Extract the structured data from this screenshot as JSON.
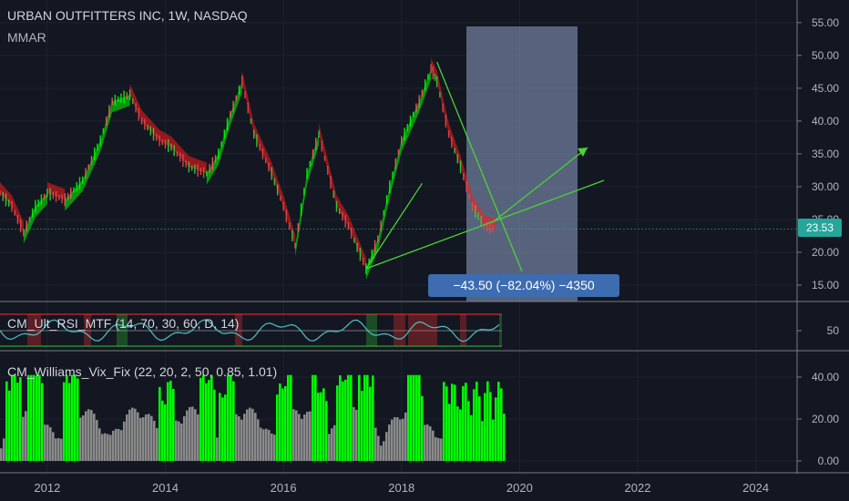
{
  "header": {
    "title": "URBAN OUTFITTERS INC, 1W, NASDAQ",
    "indicator": "MMAR"
  },
  "price_pane": {
    "last_price": "23.53",
    "last_price_color": "#26a69a",
    "measure_label": "−43.50 (−82.04%) −4350"
  },
  "rsi_pane": {
    "title": "CM_Ult_RSI_MTF (14, 70, 30, 60, D, 14)"
  },
  "vix_pane": {
    "title": "CM_Williams_Vix_Fix (22, 20, 2, 50, 0.85, 1.01)"
  },
  "colors": {
    "background": "#131722",
    "up": "#00ff00",
    "down": "#ff1a1a",
    "rsi_line": "#4ec3c3",
    "vix_normal": "#8a8a8a",
    "measure_box": "#3d6cb0",
    "trendline": "#4cd137"
  },
  "chart_data": [
    {
      "type": "line",
      "pane": "price",
      "x_ticks": [
        "2012",
        "2014",
        "2016",
        "2018",
        "2020",
        "2022",
        "2024"
      ],
      "x_tick_values": [
        2012,
        2014,
        2016,
        2018,
        2020,
        2022,
        2024
      ],
      "y_ticks": [
        "15.00",
        "20.00",
        "25.00",
        "30.00",
        "35.00",
        "40.00",
        "45.00",
        "50.00",
        "55.00"
      ],
      "y_tick_values": [
        15,
        20,
        25,
        30,
        35,
        40,
        45,
        50,
        55
      ],
      "ylim": [
        12.5,
        56.5
      ],
      "xlim": [
        2011.2,
        2024.7
      ],
      "series": [
        {
          "x": [
            2011.2,
            2011.4,
            2011.6,
            2011.8,
            2012.0,
            2012.3,
            2012.6,
            2012.9,
            2013.1,
            2013.4,
            2013.6,
            2013.9,
            2014.1,
            2014.4,
            2014.7,
            2014.9,
            2015.1,
            2015.3,
            2015.5,
            2015.8,
            2016.0,
            2016.2,
            2016.4,
            2016.6,
            2016.9,
            2017.1,
            2017.4,
            2017.6,
            2017.8,
            2018.0,
            2018.3,
            2018.5,
            2018.6,
            2018.8,
            2019.0,
            2019.2,
            2019.4,
            2019.6
          ],
          "y": [
            29,
            27,
            23,
            27,
            29,
            28,
            31,
            37,
            43,
            44,
            40,
            37,
            36,
            33,
            32,
            35,
            41,
            46,
            38,
            32,
            27,
            21,
            32,
            38,
            27,
            24,
            17.5,
            22,
            30,
            37,
            43,
            48,
            46,
            38,
            33,
            27,
            24,
            23.5
          ]
        }
      ]
    },
    {
      "type": "line",
      "pane": "rsi",
      "y_ticks": [
        "50"
      ],
      "y_tick_values": [
        50
      ]
    },
    {
      "type": "bar",
      "pane": "vix",
      "y_ticks": [
        "0.00",
        "20.00",
        "40.00"
      ],
      "y_tick_values": [
        0,
        20,
        40
      ],
      "ylim": [
        -5,
        45
      ],
      "xlim": [
        2011.2,
        2024.7
      ],
      "highlight_years": [
        2011.4,
        2011.8,
        2012.4,
        2014.0,
        2014.7,
        2015.0,
        2016.0,
        2016.6,
        2017.0,
        2017.4,
        2018.2,
        2018.8,
        2019.0,
        2019.2,
        2019.4,
        2019.6
      ]
    }
  ]
}
